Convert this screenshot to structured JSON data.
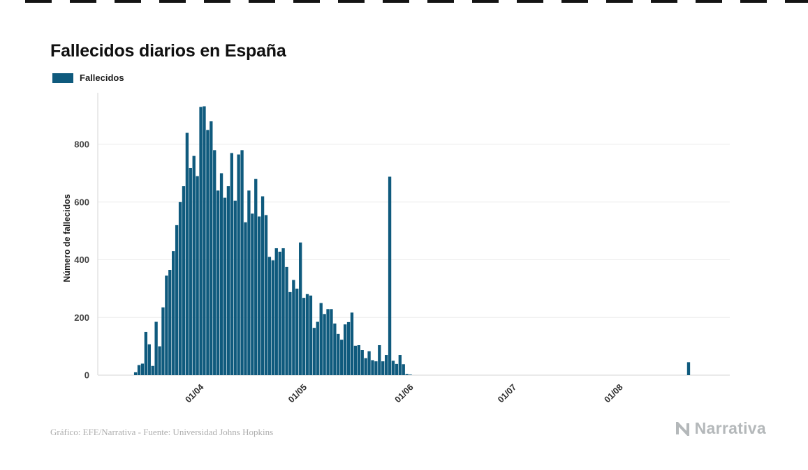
{
  "page": {
    "title": "Fallecidos diarios en España",
    "footer_credit": "Gráfico: EFE/Narrativa - Fuente: Universidad Johns Hopkins",
    "brand": "Narrativa"
  },
  "legend": {
    "label": "Fallecidos",
    "color": "#0f5a7d"
  },
  "chart_data": {
    "type": "bar",
    "title": "Fallecidos diarios en España",
    "xlabel": "",
    "ylabel": "Número de fallecidos",
    "series_name": "Fallecidos",
    "bar_color": "#0f5a7d",
    "grid": true,
    "legend_position": "top-left",
    "ylim": [
      0,
      950
    ],
    "yticks": [
      0,
      200,
      400,
      600,
      800
    ],
    "x_range": [
      "2020-03-01",
      "2020-09-01"
    ],
    "xticks": [
      {
        "date": "2020-04-01",
        "label": "01/04"
      },
      {
        "date": "2020-05-01",
        "label": "01/05"
      },
      {
        "date": "2020-06-01",
        "label": "01/06"
      },
      {
        "date": "2020-07-01",
        "label": "01/07"
      },
      {
        "date": "2020-08-01",
        "label": "01/08"
      }
    ],
    "dates": [
      "2020-03-12",
      "2020-03-13",
      "2020-03-14",
      "2020-03-15",
      "2020-03-16",
      "2020-03-17",
      "2020-03-18",
      "2020-03-19",
      "2020-03-20",
      "2020-03-21",
      "2020-03-22",
      "2020-03-23",
      "2020-03-24",
      "2020-03-25",
      "2020-03-26",
      "2020-03-27",
      "2020-03-28",
      "2020-03-29",
      "2020-03-30",
      "2020-03-31",
      "2020-04-01",
      "2020-04-02",
      "2020-04-03",
      "2020-04-04",
      "2020-04-05",
      "2020-04-06",
      "2020-04-07",
      "2020-04-08",
      "2020-04-09",
      "2020-04-10",
      "2020-04-11",
      "2020-04-12",
      "2020-04-13",
      "2020-04-14",
      "2020-04-15",
      "2020-04-16",
      "2020-04-17",
      "2020-04-18",
      "2020-04-19",
      "2020-04-20",
      "2020-04-21",
      "2020-04-22",
      "2020-04-23",
      "2020-04-24",
      "2020-04-25",
      "2020-04-26",
      "2020-04-27",
      "2020-04-28",
      "2020-04-29",
      "2020-04-30",
      "2020-05-01",
      "2020-05-02",
      "2020-05-03",
      "2020-05-04",
      "2020-05-05",
      "2020-05-06",
      "2020-05-07",
      "2020-05-08",
      "2020-05-09",
      "2020-05-10",
      "2020-05-11",
      "2020-05-12",
      "2020-05-13",
      "2020-05-14",
      "2020-05-15",
      "2020-05-16",
      "2020-05-17",
      "2020-05-18",
      "2020-05-19",
      "2020-05-20",
      "2020-05-21",
      "2020-05-22",
      "2020-05-23",
      "2020-05-24",
      "2020-05-25",
      "2020-05-26",
      "2020-05-27",
      "2020-05-28",
      "2020-05-29",
      "2020-05-30",
      "2020-05-31",
      "2020-08-20"
    ],
    "values": [
      10,
      35,
      40,
      150,
      107,
      32,
      185,
      100,
      235,
      345,
      365,
      430,
      520,
      600,
      655,
      840,
      718,
      760,
      690,
      930,
      932,
      850,
      880,
      780,
      640,
      700,
      615,
      655,
      770,
      605,
      765,
      780,
      530,
      640,
      560,
      680,
      550,
      620,
      555,
      410,
      398,
      440,
      428,
      440,
      375,
      288,
      330,
      300,
      460,
      268,
      281,
      276,
      164,
      185,
      250,
      212,
      229,
      229,
      179,
      143,
      123,
      176,
      184,
      217,
      102,
      104,
      87,
      59,
      83,
      52,
      48,
      104,
      48,
      70,
      688,
      50,
      39,
      70,
      38,
      4,
      2,
      45
    ]
  }
}
